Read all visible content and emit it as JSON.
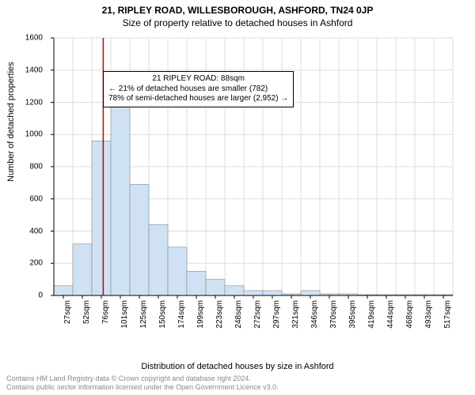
{
  "titles": {
    "line1": "21, RIPLEY ROAD, WILLESBOROUGH, ASHFORD, TN24 0JP",
    "line2": "Size of property relative to detached houses in Ashford"
  },
  "chart": {
    "type": "histogram",
    "ylabel": "Number of detached properties",
    "xlabel": "Distribution of detached houses by size in Ashford",
    "ylim": [
      0,
      1600
    ],
    "ytick_step": 200,
    "bar_color": "#cfe2f3",
    "bar_border": "#888888",
    "grid_color": "#dddddd",
    "axis_color": "#000000",
    "background_color": "#ffffff",
    "marker_line_color": "#cc0000",
    "marker_x_index": 2.6,
    "xticks": [
      "27sqm",
      "52sqm",
      "76sqm",
      "101sqm",
      "125sqm",
      "150sqm",
      "174sqm",
      "199sqm",
      "223sqm",
      "248sqm",
      "272sqm",
      "297sqm",
      "321sqm",
      "346sqm",
      "370sqm",
      "395sqm",
      "419sqm",
      "444sqm",
      "468sqm",
      "493sqm",
      "517sqm"
    ],
    "values": [
      60,
      320,
      960,
      1180,
      690,
      440,
      300,
      150,
      100,
      60,
      30,
      30,
      10,
      30,
      10,
      10,
      5,
      5,
      5,
      5,
      5
    ]
  },
  "annotation": {
    "line1": "21 RIPLEY ROAD: 88sqm",
    "line2": "← 21% of detached houses are smaller (782)",
    "line3": "78% of semi-detached houses are larger (2,952) →"
  },
  "footer": {
    "line1": "Contains HM Land Registry data © Crown copyright and database right 2024.",
    "line2": "Contains public sector information licensed under the Open Government Licence v3.0."
  }
}
